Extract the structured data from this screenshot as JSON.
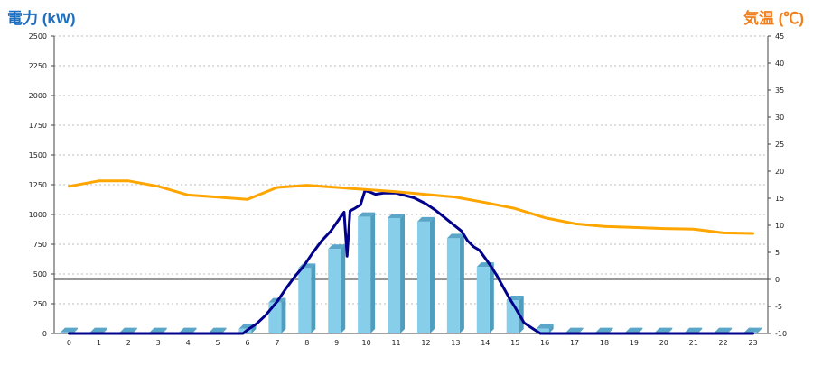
{
  "chart_data": {
    "type": "bar",
    "ylabel_left": "電力 (kW)",
    "ylabel_right": "気温 (℃)",
    "categories": [
      "0",
      "1",
      "2",
      "3",
      "4",
      "5",
      "6",
      "7",
      "8",
      "9",
      "10",
      "11",
      "12",
      "13",
      "14",
      "15",
      "16",
      "17",
      "18",
      "19",
      "20",
      "21",
      "22",
      "23"
    ],
    "left_axis": {
      "ylim": [
        0,
        2500
      ],
      "ticks": [
        0,
        250,
        500,
        750,
        1000,
        1250,
        1500,
        1750,
        2000,
        2250,
        2500
      ]
    },
    "right_axis": {
      "ylim": [
        -10,
        45
      ],
      "ticks": [
        -10,
        -5,
        0,
        5,
        10,
        15,
        20,
        25,
        30,
        35,
        40,
        45
      ]
    },
    "grid": true,
    "series": [
      {
        "kind": "bar",
        "axis": "left",
        "color": "#87ceeb",
        "values": [
          10,
          10,
          10,
          10,
          10,
          10,
          40,
          260,
          550,
          710,
          980,
          970,
          940,
          800,
          560,
          280,
          40,
          10,
          10,
          10,
          10,
          10,
          10,
          10
        ]
      },
      {
        "kind": "line",
        "axis": "left",
        "color": "#00008b",
        "x": [
          0,
          1,
          2,
          3,
          4,
          5,
          5.85,
          6,
          6.3,
          6.6,
          7,
          7.3,
          7.6,
          7.9,
          8.2,
          8.5,
          8.8,
          9.05,
          9.25,
          9.35,
          9.45,
          9.6,
          9.8,
          9.95,
          10.1,
          10.3,
          10.6,
          11,
          11.3,
          11.6,
          12,
          12.3,
          12.6,
          12.9,
          13.2,
          13.4,
          13.6,
          13.8,
          14,
          14.2,
          14.4,
          14.6,
          14.8,
          15,
          15.3,
          15.6,
          15.85,
          16,
          17,
          18,
          19,
          20,
          21,
          22,
          23
        ],
        "values": [
          0,
          0,
          0,
          0,
          0,
          0,
          0,
          30,
          80,
          150,
          270,
          380,
          480,
          570,
          680,
          780,
          860,
          950,
          1020,
          650,
          1030,
          1050,
          1080,
          1200,
          1190,
          1170,
          1180,
          1180,
          1160,
          1140,
          1090,
          1040,
          980,
          920,
          860,
          780,
          730,
          700,
          630,
          560,
          480,
          390,
          300,
          220,
          90,
          40,
          0,
          0,
          0,
          0,
          0,
          0,
          0,
          0,
          0
        ]
      },
      {
        "kind": "line",
        "axis": "right",
        "color": "#ffa500",
        "x": [
          0,
          1,
          2,
          3,
          4,
          5,
          6,
          7,
          8,
          9,
          10,
          11,
          12,
          13,
          14,
          15,
          16,
          17,
          18,
          19,
          20,
          21,
          22,
          23
        ],
        "values": [
          17.2,
          18.2,
          18.2,
          17.2,
          15.6,
          15.2,
          14.8,
          17.0,
          17.4,
          17.0,
          16.6,
          16.2,
          15.7,
          15.2,
          14.2,
          13.1,
          11.4,
          10.3,
          9.8,
          9.6,
          9.4,
          9.3,
          8.6,
          8.5
        ]
      }
    ]
  }
}
